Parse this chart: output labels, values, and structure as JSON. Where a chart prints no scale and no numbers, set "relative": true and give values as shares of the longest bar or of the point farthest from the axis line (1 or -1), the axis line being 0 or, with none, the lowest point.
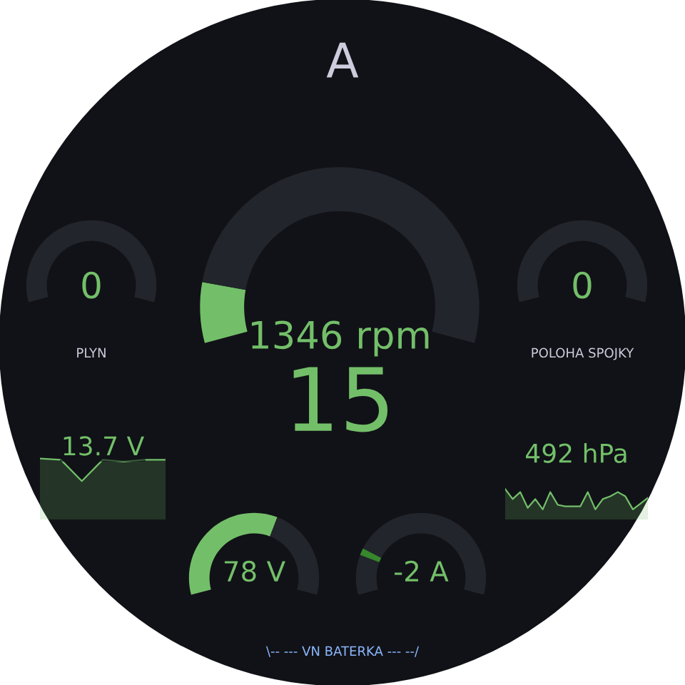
{
  "chart_data": [
    {
      "type": "other",
      "title": "A",
      "annotations": [
        "\\-- --- VN BATERKA --- --/"
      ]
    },
    {
      "type": "pie",
      "categories": [
        null,
        null
      ],
      "values": [
        0,
        100
      ],
      "colors": [
        "#73bf69",
        "#22252b"
      ],
      "annotations": [
        "0"
      ],
      "xlabel": "PLYN"
    },
    {
      "type": "donut",
      "categories": [
        null,
        null
      ],
      "values": [
        12,
        88
      ],
      "colors": [
        "#73bf69",
        "#22252b"
      ],
      "annotations": [
        "1346 rpm"
      ]
    },
    {
      "type": "pie",
      "categories": [
        null,
        null
      ],
      "values": [
        0,
        100
      ],
      "colors": [
        "#73bf69",
        "#22252b"
      ],
      "annotations": [
        "0"
      ],
      "xlabel": "POLOHA SPOJKY"
    },
    {
      "type": "other",
      "annotations": [
        "15"
      ]
    },
    {
      "type": "area",
      "relative": true,
      "categories": [
        null,
        null,
        null,
        null,
        null,
        null,
        null
      ],
      "series": [
        {
          "color": "#73bf69",
          "values": [
            1.0,
            0.98,
            0.63,
            0.98,
            0.95,
            0.98,
            0.98
          ]
        }
      ],
      "annotations": [
        "13.7 V"
      ]
    },
    {
      "type": "area",
      "relative": true,
      "categories": [
        null,
        null,
        null,
        null,
        null,
        null,
        null,
        null,
        null,
        null,
        null,
        null,
        null,
        null,
        null,
        null,
        null,
        null,
        null,
        null
      ],
      "series": [
        {
          "color": "#73bf69",
          "values": [
            1.0,
            0.67,
            0.9,
            0.38,
            0.67,
            0.33,
            0.9,
            0.48,
            0.43,
            0.43,
            0.43,
            0.9,
            0.33,
            0.67,
            0.76,
            0.9,
            0.76,
            0.33,
            0.52,
            0.71
          ]
        }
      ],
      "annotations": [
        "492 hPa"
      ]
    },
    {
      "type": "donut",
      "categories": [
        null,
        null
      ],
      "values": [
        60,
        40
      ],
      "colors": [
        "#73bf69",
        "#22252b"
      ],
      "annotations": [
        "78 V"
      ]
    },
    {
      "type": "donut",
      "categories": [
        null,
        null,
        null
      ],
      "values": [
        17,
        3,
        80
      ],
      "colors": [
        "#22252b",
        "#37872d",
        "#22252b"
      ],
      "annotations": [
        "-2 A"
      ]
    }
  ]
}
